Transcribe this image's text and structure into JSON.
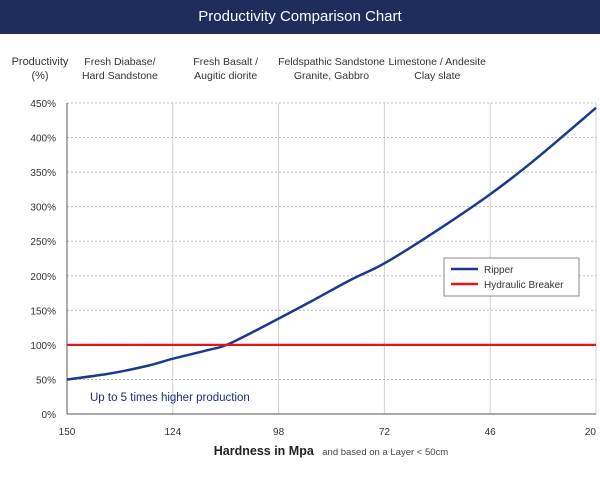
{
  "title": "Productivity Comparison Chart",
  "chart_data": {
    "type": "line",
    "title": "Productivity Comparison Chart",
    "ylabel_lines": [
      "Productivity",
      "(%)"
    ],
    "xlabel": "Hardness in Mpa",
    "xlabel_note": "and based on a Layer < 50cm",
    "x_ticks": [
      "150",
      "124",
      "98",
      "72",
      "46",
      "20"
    ],
    "x_tick_values": [
      150,
      124,
      98,
      72,
      46,
      20
    ],
    "xlim": [
      150,
      20
    ],
    "ylim": [
      0,
      450
    ],
    "y_ticks": [
      0,
      50,
      100,
      150,
      200,
      250,
      300,
      350,
      400,
      450
    ],
    "y_tick_labels": [
      "0%",
      "50%",
      "100%",
      "150%",
      "200%",
      "250%",
      "300%",
      "350%",
      "400%",
      "450%"
    ],
    "grid": true,
    "rock_categories": [
      {
        "lines": [
          "Fresh Diabase/",
          "Hard Sandstone"
        ],
        "x": 137
      },
      {
        "lines": [
          "Fresh Basalt /",
          "Augitic diorite"
        ],
        "x": 111
      },
      {
        "lines": [
          "Feldspathic Sandstone",
          "Granite, Gabbro"
        ],
        "x": 85
      },
      {
        "lines": [
          "Limestone / Andesite",
          "Clay slate"
        ],
        "x": 59
      }
    ],
    "series": [
      {
        "name": "Ripper",
        "color": "#1a3a8c",
        "x": [
          150,
          140,
          130,
          124,
          115,
          110,
          98,
          90,
          80,
          72,
          60,
          46,
          35,
          20
        ],
        "y": [
          50,
          58,
          70,
          80,
          93,
          102,
          138,
          163,
          195,
          218,
          262,
          318,
          368,
          443
        ]
      },
      {
        "name": "Hydraulic Breaker",
        "color": "#e3141b",
        "x": [
          150,
          20
        ],
        "y": [
          100,
          100
        ]
      }
    ],
    "annotation": "Up to 5 times higher production",
    "legend_position": "right-middle"
  }
}
